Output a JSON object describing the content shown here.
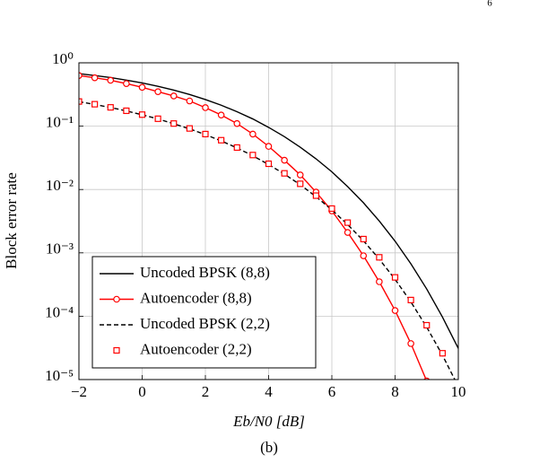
{
  "page_number": "6",
  "caption": "(b)",
  "chart_data": {
    "type": "line",
    "xlabel": "Eb/N0 [dB]",
    "ylabel": "Block error rate",
    "xlim": [
      -2,
      10
    ],
    "ylim": [
      1e-05,
      1
    ],
    "log_y": true,
    "grid": true,
    "legend": "lower left",
    "xticks": [
      -2,
      0,
      2,
      4,
      6,
      8,
      10
    ],
    "yticks": [
      {
        "value": 1,
        "label": "10⁰"
      },
      {
        "value": 0.1,
        "label": "10⁻¹"
      },
      {
        "value": 0.01,
        "label": "10⁻²"
      },
      {
        "value": 0.001,
        "label": "10⁻³"
      },
      {
        "value": 0.0001,
        "label": "10⁻⁴"
      },
      {
        "value": 1e-05,
        "label": "10⁻⁵"
      }
    ],
    "series": [
      {
        "name": "Uncoded BPSK (8,8)",
        "color": "#000000",
        "line": true,
        "dash": false,
        "marker": "none",
        "x": [
          -2,
          -1.5,
          -1,
          -0.5,
          0,
          0.5,
          1,
          1.5,
          2,
          2.5,
          3,
          3.5,
          4,
          4.5,
          5,
          5.5,
          6,
          6.5,
          7,
          7.5,
          8,
          8.5,
          9,
          9.5,
          10
        ],
        "values": [
          0.674,
          0.63,
          0.584,
          0.533,
          0.481,
          0.426,
          0.371,
          0.316,
          0.263,
          0.214,
          0.169,
          0.13,
          0.0957,
          0.0683,
          0.0466,
          0.0305,
          0.019,
          0.0111,
          0.00617,
          0.00318,
          0.00153,
          0.000671,
          0.000269,
          9.68e-05,
          3.1e-05
        ]
      },
      {
        "name": "Autoencoder (8,8)",
        "color": "#ff0000",
        "line": true,
        "dash": false,
        "marker": "circle",
        "x": [
          -2,
          -1.5,
          -1,
          -0.5,
          0,
          0.5,
          1,
          1.5,
          2,
          2.5,
          3,
          3.5,
          4,
          4.5,
          5,
          5.5,
          6,
          6.5,
          7,
          7.5,
          8,
          8.5,
          9
        ],
        "values": [
          0.63,
          0.58,
          0.53,
          0.47,
          0.41,
          0.35,
          0.3,
          0.25,
          0.196,
          0.15,
          0.11,
          0.075,
          0.048,
          0.029,
          0.017,
          0.0091,
          0.0046,
          0.0021,
          0.0009,
          0.00035,
          0.000123,
          3.7e-05,
          9.5e-06
        ]
      },
      {
        "name": "Uncoded BPSK (2,2)",
        "color": "#000000",
        "line": true,
        "dash": true,
        "marker": "none",
        "x": [
          -2,
          -1.5,
          -1,
          -0.5,
          0,
          0.5,
          1,
          1.5,
          2,
          2.5,
          3,
          3.5,
          4,
          4.5,
          5,
          5.5,
          6,
          6.5,
          7,
          7.5,
          8,
          8.5,
          9,
          9.5,
          10
        ],
        "values": [
          0.244,
          0.22,
          0.197,
          0.174,
          0.151,
          0.13,
          0.109,
          0.0907,
          0.0736,
          0.0585,
          0.0453,
          0.0341,
          0.0248,
          0.0175,
          0.0119,
          0.00771,
          0.00477,
          0.0028,
          0.00155,
          0.000796,
          0.000382,
          0.000168,
          6.72e-05,
          2.42e-05,
          7.74e-06
        ]
      },
      {
        "name": "Autoencoder (2,2)",
        "color": "#ff0000",
        "line": false,
        "dash": false,
        "marker": "square",
        "x": [
          -2,
          -1.5,
          -1,
          -0.5,
          0,
          0.5,
          1,
          1.5,
          2,
          2.5,
          3,
          3.5,
          4,
          4.5,
          5,
          5.5,
          6,
          6.5,
          7,
          7.5,
          8,
          8.5,
          9,
          9.5
        ],
        "values": [
          0.245,
          0.222,
          0.198,
          0.175,
          0.152,
          0.131,
          0.11,
          0.092,
          0.075,
          0.06,
          0.046,
          0.035,
          0.0255,
          0.018,
          0.0123,
          0.008,
          0.005,
          0.003,
          0.00165,
          0.00085,
          0.00041,
          0.00018,
          7.2e-05,
          2.6e-05
        ]
      }
    ]
  }
}
